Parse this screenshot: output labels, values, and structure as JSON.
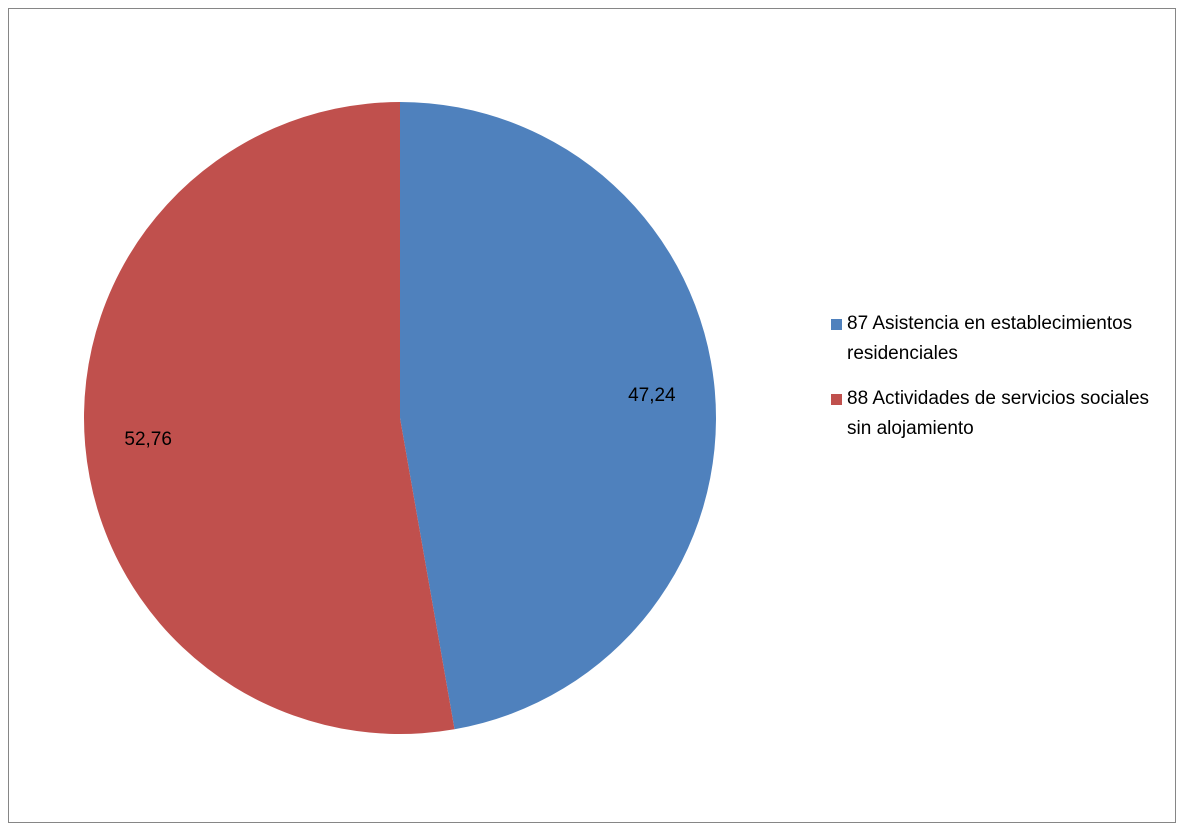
{
  "chart_data": {
    "type": "pie",
    "title": "",
    "categories": [
      "87 Asistencia en establecimientos residenciales",
      "88 Actividades de servicios sociales sin alojamiento"
    ],
    "values": [
      47.24,
      52.76
    ],
    "value_labels": [
      "47,24",
      "52,76"
    ],
    "colors": [
      "#4F81BD",
      "#C0504D"
    ],
    "start_angle": "12 o'clock, clockwise",
    "legend_position": "right"
  }
}
